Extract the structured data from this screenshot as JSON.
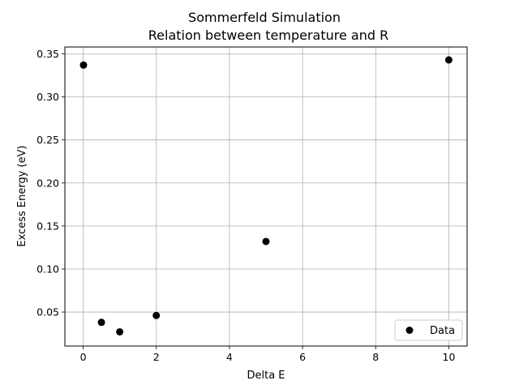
{
  "chart_data": {
    "type": "scatter",
    "title": "Sommerfeld Simulation",
    "subtitle": "Relation between temperature and R",
    "xlabel": "Delta E",
    "ylabel": "Excess Energy (eV)",
    "xlim": [
      -0.5,
      10.5
    ],
    "ylim": [
      0.0105,
      0.358
    ],
    "xticks": [
      0,
      2,
      4,
      6,
      8,
      10
    ],
    "xtick_labels": [
      "0",
      "2",
      "4",
      "6",
      "8",
      "10"
    ],
    "yticks": [
      0.05,
      0.1,
      0.15,
      0.2,
      0.25,
      0.3,
      0.35
    ],
    "ytick_labels": [
      "0.05",
      "0.10",
      "0.15",
      "0.20",
      "0.25",
      "0.30",
      "0.35"
    ],
    "grid": true,
    "legend_position": "lower-right",
    "series": [
      {
        "name": "Data",
        "color": "#000000",
        "marker": "circle",
        "x": [
          0.01,
          0.5,
          1,
          2,
          5,
          10
        ],
        "y": [
          0.337,
          0.038,
          0.027,
          0.046,
          0.132,
          0.343
        ]
      }
    ]
  }
}
